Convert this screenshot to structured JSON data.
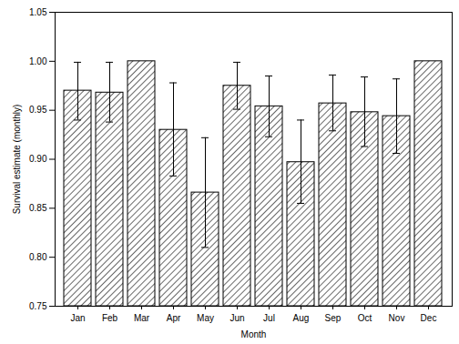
{
  "chart_data": {
    "type": "bar",
    "x_label": "Month",
    "y_label": "Survival estimate (monthly)",
    "categories": [
      "Jan",
      "Feb",
      "Mar",
      "Apr",
      "May",
      "Jun",
      "Jul",
      "Aug",
      "Sep",
      "Oct",
      "Nov",
      "Dec"
    ],
    "values": [
      0.97,
      0.968,
      1.0,
      0.93,
      0.866,
      0.975,
      0.954,
      0.897,
      0.957,
      0.948,
      0.944,
      1.0
    ],
    "error_lower": [
      0.94,
      0.938,
      null,
      0.883,
      0.81,
      0.951,
      0.923,
      0.855,
      0.929,
      0.913,
      0.906,
      null
    ],
    "error_upper": [
      0.999,
      0.999,
      null,
      0.978,
      0.922,
      0.999,
      0.985,
      0.94,
      0.986,
      0.984,
      0.982,
      null
    ],
    "color": "#000000",
    "ylim": [
      0.75,
      1.05
    ],
    "yticks": [
      0.75,
      {
        "value": 0.8,
        "label": "0.80"
      },
      0.85,
      {
        "value": 0.9,
        "label": "0.90"
      },
      0.95,
      {
        "value": 1.0,
        "label": "1.00"
      },
      1.05
    ],
    "grid": false
  }
}
